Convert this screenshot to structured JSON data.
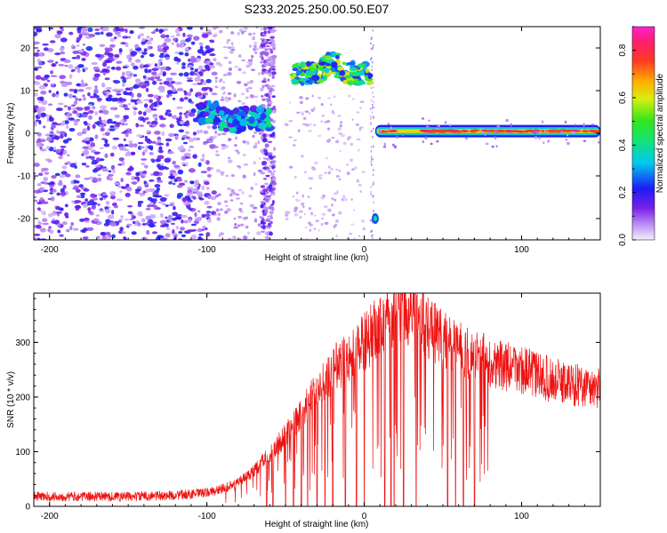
{
  "title": "S233.2025.250.00.50.E07",
  "colors": {
    "snr_line": "#ee1111",
    "axis": "#000000",
    "noise": "#8a2be2"
  },
  "chart_data": [
    {
      "type": "heatmap",
      "name": "spectrogram",
      "title": "S233.2025.250.00.50.E07",
      "xlabel": "Height of straight line (km)",
      "ylabel": "Frequency (Hz)",
      "xlim": [
        -210,
        150
      ],
      "ylim": [
        -25,
        25
      ],
      "xticks": [
        -200,
        -100,
        0,
        100
      ],
      "yticks": [
        -20,
        -10,
        0,
        10,
        20
      ],
      "colorbar": {
        "label": "Normalized spectral amplitude",
        "range": [
          0,
          0.9
        ],
        "ticks": [
          0.0,
          0.2,
          0.4,
          0.6,
          0.8
        ],
        "colormap": "rainbow (violet → blue → cyan → green → yellow → red → magenta)"
      },
      "features": [
        {
          "label": "broadband noise",
          "x_range": [
            -210,
            -95
          ],
          "freq_range": [
            -25,
            25
          ],
          "amplitude": 0.15
        },
        {
          "label": "arc signal",
          "x_range": [
            -105,
            -60
          ],
          "freq_range": [
            1,
            8
          ],
          "amplitude": 0.35
        },
        {
          "label": "signal segment",
          "x_range": [
            -45,
            5
          ],
          "freq_range": [
            11,
            17
          ],
          "amplitude": 0.5
        },
        {
          "label": "carrier line",
          "x_range": [
            7,
            150
          ],
          "freq": 0.5,
          "amplitude": 0.8
        },
        {
          "label": "spot",
          "x": 7,
          "freq": -20,
          "amplitude": 0.3
        }
      ]
    },
    {
      "type": "line",
      "name": "snr",
      "xlabel": "Height of straight line (km)",
      "ylabel": "SNR (10 * v/v)",
      "xlim": [
        -210,
        150
      ],
      "ylim": [
        0,
        390
      ],
      "xticks": [
        -200,
        -100,
        0,
        100
      ],
      "yticks": [
        0,
        100,
        200,
        300
      ],
      "envelope": {
        "x": [
          -210,
          -180,
          -150,
          -120,
          -100,
          -90,
          -80,
          -70,
          -60,
          -50,
          -40,
          -30,
          -20,
          -10,
          0,
          10,
          20,
          25,
          30,
          40,
          50,
          60,
          70,
          80,
          90,
          100,
          110,
          120,
          130,
          140,
          150
        ],
        "y": [
          18,
          18,
          18,
          20,
          25,
          32,
          45,
          65,
          95,
          130,
          170,
          210,
          250,
          275,
          300,
          330,
          350,
          360,
          355,
          330,
          305,
          290,
          275,
          265,
          255,
          250,
          240,
          230,
          225,
          220,
          215
        ]
      },
      "dropouts_x": [
        -62,
        -58,
        -50,
        -45,
        -40,
        -36,
        -30,
        -25,
        -20,
        -12,
        -5,
        0,
        13,
        17,
        19,
        25,
        33,
        53,
        58,
        63,
        70
      ]
    }
  ]
}
